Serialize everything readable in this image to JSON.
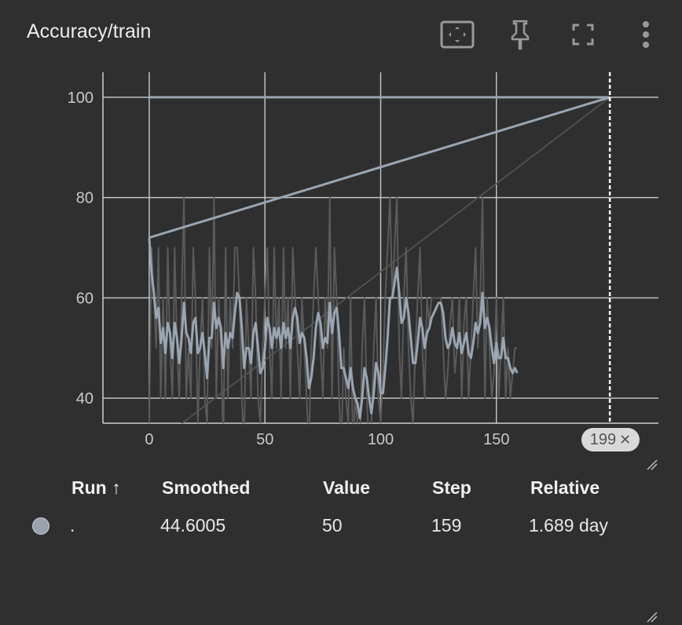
{
  "title": "Accuracy/train",
  "toolbar": {
    "icons": [
      "fit-domain-icon",
      "pin-icon",
      "fullscreen-icon",
      "more-vert-icon"
    ]
  },
  "colors": {
    "background": "#2f2f2f",
    "grid": "#d0d0d0",
    "raw_line": "#5a5a5a",
    "smoothed_line": "#9aa5b1",
    "cursor_line": "#ffffff"
  },
  "chart_data": {
    "type": "line",
    "title": "",
    "xlabel": "",
    "ylabel": "",
    "xlim": [
      -20,
      220
    ],
    "ylim": [
      35,
      105
    ],
    "x_ticks": [
      "0",
      "50",
      "100",
      "150"
    ],
    "y_ticks": [
      "40",
      "60",
      "80",
      "100"
    ],
    "grid": true,
    "cursor_step": 199,
    "cursor_label": "199",
    "series": [
      {
        "role": "raw",
        "x": [
          0,
          1,
          2,
          3,
          4,
          5,
          6,
          7,
          8,
          9,
          10,
          11,
          12,
          13,
          14,
          15,
          16,
          17,
          18,
          19,
          20,
          21,
          22,
          23,
          24,
          25,
          26,
          27,
          28,
          29,
          30,
          31,
          32,
          33,
          34,
          35,
          36,
          37,
          38,
          39,
          40,
          41,
          42,
          43,
          44,
          45,
          46,
          47,
          48,
          49,
          50,
          51,
          52,
          53,
          54,
          55,
          56,
          57,
          58,
          59,
          60,
          61,
          62,
          63,
          64,
          65,
          66,
          67,
          68,
          69,
          70,
          71,
          72,
          73,
          74,
          75,
          76,
          77,
          78,
          79,
          80,
          81,
          82,
          83,
          84,
          85,
          86,
          87,
          88,
          89,
          90,
          91,
          92,
          93,
          94,
          95,
          96,
          97,
          98,
          99,
          100,
          101,
          102,
          103,
          104,
          105,
          106,
          107,
          108,
          109,
          110,
          111,
          112,
          113,
          114,
          115,
          116,
          117,
          118,
          119,
          120,
          121,
          122,
          123,
          124,
          125,
          126,
          127,
          128,
          129,
          130,
          131,
          132,
          133,
          134,
          135,
          136,
          137,
          138,
          139,
          140,
          141,
          142,
          143,
          144,
          145,
          146,
          147,
          148,
          149,
          150,
          151,
          152,
          153,
          154,
          155,
          156,
          157,
          158,
          159
        ],
        "y": [
          35,
          70,
          60,
          50,
          70,
          40,
          60,
          40,
          70,
          50,
          40,
          70,
          50,
          40,
          60,
          80,
          40,
          50,
          40,
          70,
          60,
          35,
          50,
          60,
          40,
          35,
          70,
          50,
          80,
          40,
          60,
          50,
          30,
          70,
          40,
          60,
          50,
          70,
          70,
          60,
          40,
          30,
          60,
          50,
          40,
          70,
          60,
          40,
          35,
          50,
          60,
          70,
          50,
          40,
          70,
          50,
          60,
          40,
          70,
          50,
          60,
          40,
          70,
          60,
          50,
          40,
          60,
          50,
          40,
          30,
          50,
          60,
          70,
          60,
          50,
          40,
          60,
          50,
          80,
          40,
          70,
          60,
          40,
          30,
          50,
          40,
          35,
          60,
          30,
          40,
          35,
          30,
          50,
          60,
          40,
          30,
          35,
          50,
          60,
          40,
          35,
          45,
          60,
          70,
          80,
          60,
          70,
          80,
          50,
          40,
          60,
          70,
          50,
          40,
          35,
          50,
          60,
          70,
          50,
          40,
          60,
          55,
          60,
          60,
          60,
          60,
          60,
          50,
          40,
          45,
          55,
          60,
          45,
          50,
          60,
          40,
          55,
          60,
          40,
          50,
          60,
          70,
          50,
          60,
          80,
          40,
          60,
          50,
          40,
          45,
          60,
          40,
          50,
          60,
          40,
          50,
          40,
          45,
          50,
          50
        ]
      },
      {
        "role": "smoothed",
        "x": [
          0,
          1,
          2,
          3,
          4,
          5,
          6,
          7,
          8,
          9,
          10,
          11,
          12,
          13,
          14,
          15,
          16,
          17,
          18,
          19,
          20,
          21,
          22,
          23,
          24,
          25,
          26,
          27,
          28,
          29,
          30,
          31,
          32,
          33,
          34,
          35,
          36,
          37,
          38,
          39,
          40,
          41,
          42,
          43,
          44,
          45,
          46,
          47,
          48,
          49,
          50,
          51,
          52,
          53,
          54,
          55,
          56,
          57,
          58,
          59,
          60,
          61,
          62,
          63,
          64,
          65,
          66,
          67,
          68,
          69,
          70,
          71,
          72,
          73,
          74,
          75,
          76,
          77,
          78,
          79,
          80,
          81,
          82,
          83,
          84,
          85,
          86,
          87,
          88,
          89,
          90,
          91,
          92,
          93,
          94,
          95,
          96,
          97,
          98,
          99,
          100,
          101,
          102,
          103,
          104,
          105,
          106,
          107,
          108,
          109,
          110,
          111,
          112,
          113,
          114,
          115,
          116,
          117,
          118,
          119,
          120,
          121,
          122,
          123,
          124,
          125,
          126,
          127,
          128,
          129,
          130,
          131,
          132,
          133,
          134,
          135,
          136,
          137,
          138,
          139,
          140,
          141,
          142,
          143,
          144,
          145,
          146,
          147,
          148,
          149,
          150,
          151,
          152,
          153,
          154,
          155,
          156,
          157,
          158,
          159
        ],
        "y": [
          72,
          65,
          61,
          56,
          58,
          51,
          54,
          49,
          55,
          53,
          48,
          55,
          52,
          47,
          52,
          59,
          53,
          52,
          49,
          55,
          56,
          49,
          50,
          53,
          49,
          44,
          52,
          52,
          59,
          54,
          56,
          54,
          46,
          53,
          50,
          53,
          52,
          57,
          61,
          60,
          54,
          46,
          50,
          50,
          47,
          53,
          55,
          50,
          45,
          46,
          50,
          56,
          54,
          50,
          54,
          52,
          54,
          50,
          55,
          52,
          54,
          50,
          56,
          58,
          56,
          51,
          53,
          52,
          48,
          42,
          44,
          48,
          54,
          57,
          55,
          50,
          52,
          51,
          59,
          53,
          57,
          58,
          53,
          46,
          46,
          44,
          42,
          46,
          42,
          40,
          39,
          36,
          40,
          46,
          44,
          40,
          37,
          41,
          47,
          45,
          41,
          41,
          46,
          52,
          60,
          60,
          63,
          66,
          61,
          55,
          56,
          60,
          57,
          52,
          47,
          47,
          51,
          56,
          54,
          50,
          53,
          54,
          56,
          57,
          58,
          59,
          59,
          57,
          52,
          50,
          51,
          54,
          51,
          50,
          53,
          49,
          51,
          53,
          49,
          48,
          51,
          55,
          53,
          55,
          61,
          54,
          56,
          54,
          50,
          47,
          51,
          48,
          48,
          52,
          48,
          48,
          46,
          45,
          46,
          45
        ]
      },
      {
        "role": "min-max-envelope",
        "x": [
          0,
          199
        ],
        "y": [
          72,
          100
        ]
      }
    ]
  },
  "table": {
    "headers": {
      "run": "Run ↑",
      "smoothed": "Smoothed",
      "value": "Value",
      "step": "Step",
      "relative": "Relative"
    },
    "rows": [
      {
        "run": ".",
        "smoothed": "44.6005",
        "value": "50",
        "step": "159",
        "relative": "1.689 day",
        "color": "#9aa2ae"
      }
    ]
  }
}
